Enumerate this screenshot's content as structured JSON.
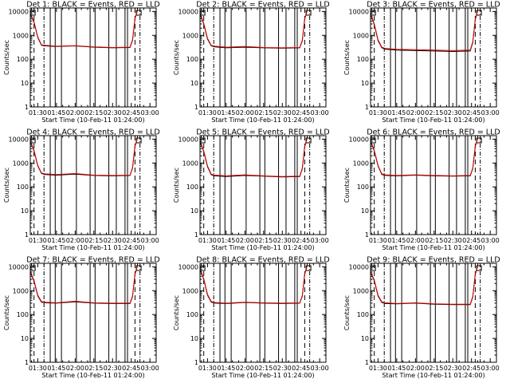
{
  "colors": {
    "background": "#ffffff",
    "axes": "#000000",
    "events": "#000000",
    "lld": "#e00000",
    "markers": "#000000"
  },
  "shared": {
    "xlabel": "Start Time (10-Feb-11 01:24:00)",
    "ylabel": "Counts/sec",
    "x_ticks": [
      "01:30",
      "01:45",
      "02:00",
      "02:15",
      "02:30",
      "02:45",
      "03:00"
    ],
    "y_ticks": [
      "1",
      "10",
      "100",
      "1000",
      "10000"
    ]
  },
  "chart_data": [
    {
      "type": "line",
      "title": "Det 1: BLACK = Events, RED = LLD",
      "xlim": [
        "01:24",
        "03:05"
      ],
      "ylim": [
        1,
        14000
      ],
      "yscale": "log",
      "series": [
        {
          "name": "Events",
          "color": "black",
          "x": [
            "01:24",
            "01:27",
            "01:30",
            "01:33",
            "01:36",
            "01:45",
            "02:00",
            "02:15",
            "02:30",
            "02:44",
            "02:46",
            "02:48",
            "02:50"
          ],
          "values": [
            8000,
            3500,
            800,
            380,
            360,
            340,
            360,
            320,
            300,
            310,
            600,
            5000,
            11000
          ]
        },
        {
          "name": "LLD",
          "color": "red",
          "x": [
            "01:24",
            "01:27",
            "01:30",
            "01:33",
            "01:36",
            "01:45",
            "02:00",
            "02:15",
            "02:30",
            "02:44",
            "02:46",
            "02:48",
            "02:50"
          ],
          "values": [
            8500,
            3700,
            850,
            400,
            380,
            350,
            370,
            330,
            310,
            320,
            650,
            5200,
            11500
          ]
        }
      ]
    },
    {
      "type": "line",
      "title": "Det 2: BLACK = Events, RED = LLD",
      "xlim": [
        "01:24",
        "03:05"
      ],
      "ylim": [
        1,
        14000
      ],
      "yscale": "log",
      "series": [
        {
          "name": "Events",
          "color": "black",
          "x": [
            "01:24",
            "01:27",
            "01:30",
            "01:33",
            "01:36",
            "01:45",
            "02:00",
            "02:15",
            "02:30",
            "02:44",
            "02:46",
            "02:48",
            "02:50"
          ],
          "values": [
            8000,
            3000,
            700,
            360,
            330,
            300,
            320,
            300,
            290,
            300,
            580,
            4800,
            11000
          ]
        },
        {
          "name": "LLD",
          "color": "red",
          "x": [
            "01:24",
            "01:27",
            "01:30",
            "01:33",
            "01:36",
            "01:45",
            "02:00",
            "02:15",
            "02:30",
            "02:44",
            "02:46",
            "02:48",
            "02:50"
          ],
          "values": [
            8500,
            3200,
            750,
            380,
            350,
            320,
            340,
            310,
            300,
            310,
            620,
            5000,
            11500
          ]
        }
      ]
    },
    {
      "type": "line",
      "title": "Det 3: BLACK = Events, RED = LLD",
      "xlim": [
        "01:24",
        "03:05"
      ],
      "ylim": [
        1,
        14000
      ],
      "yscale": "log",
      "series": [
        {
          "name": "Events",
          "color": "black",
          "x": [
            "01:24",
            "01:27",
            "01:30",
            "01:33",
            "01:36",
            "01:45",
            "02:00",
            "02:15",
            "02:30",
            "02:44",
            "02:46",
            "02:48",
            "02:50"
          ],
          "values": [
            8000,
            2800,
            600,
            300,
            260,
            240,
            230,
            220,
            210,
            220,
            500,
            4500,
            11000
          ]
        },
        {
          "name": "LLD",
          "color": "red",
          "x": [
            "01:24",
            "01:27",
            "01:30",
            "01:33",
            "01:36",
            "01:45",
            "02:00",
            "02:15",
            "02:30",
            "02:44",
            "02:46",
            "02:48",
            "02:50"
          ],
          "values": [
            8500,
            3000,
            650,
            320,
            280,
            260,
            250,
            240,
            230,
            240,
            540,
            4700,
            11500
          ]
        }
      ]
    },
    {
      "type": "line",
      "title": "Det 4: BLACK = Events, RED = LLD",
      "xlim": [
        "01:24",
        "03:05"
      ],
      "ylim": [
        1,
        14000
      ],
      "yscale": "log",
      "series": [
        {
          "name": "Events",
          "color": "black",
          "x": [
            "01:24",
            "01:27",
            "01:30",
            "01:33",
            "01:36",
            "01:45",
            "02:00",
            "02:15",
            "02:30",
            "02:44",
            "02:46",
            "02:48",
            "02:50"
          ],
          "values": [
            8000,
            3200,
            750,
            360,
            330,
            310,
            340,
            300,
            290,
            300,
            600,
            5000,
            11000
          ]
        },
        {
          "name": "LLD",
          "color": "red",
          "x": [
            "01:24",
            "01:27",
            "01:30",
            "01:33",
            "01:36",
            "01:45",
            "02:00",
            "02:15",
            "02:30",
            "02:44",
            "02:46",
            "02:48",
            "02:50"
          ],
          "values": [
            8500,
            3400,
            800,
            380,
            350,
            330,
            360,
            310,
            300,
            310,
            640,
            5200,
            11500
          ]
        }
      ]
    },
    {
      "type": "line",
      "title": "Det 5: BLACK = Events, RED = LLD",
      "xlim": [
        "01:24",
        "03:05"
      ],
      "ylim": [
        1,
        14000
      ],
      "yscale": "log",
      "series": [
        {
          "name": "Events",
          "color": "black",
          "x": [
            "01:24",
            "01:27",
            "01:30",
            "01:33",
            "01:36",
            "01:45",
            "02:00",
            "02:15",
            "02:30",
            "02:44",
            "02:46",
            "02:48",
            "02:50"
          ],
          "values": [
            8000,
            3000,
            700,
            320,
            290,
            270,
            300,
            280,
            260,
            270,
            560,
            4800,
            11000
          ]
        },
        {
          "name": "LLD",
          "color": "red",
          "x": [
            "01:24",
            "01:27",
            "01:30",
            "01:33",
            "01:36",
            "01:45",
            "02:00",
            "02:15",
            "02:30",
            "02:44",
            "02:46",
            "02:48",
            "02:50"
          ],
          "values": [
            8500,
            3200,
            750,
            340,
            310,
            290,
            320,
            290,
            270,
            280,
            600,
            5000,
            11500
          ]
        }
      ]
    },
    {
      "type": "line",
      "title": "Det 6: BLACK = Events, RED = LLD",
      "xlim": [
        "01:24",
        "03:05"
      ],
      "ylim": [
        1,
        14000
      ],
      "yscale": "log",
      "series": [
        {
          "name": "Events",
          "color": "black",
          "x": [
            "01:24",
            "01:27",
            "01:30",
            "01:33",
            "01:36",
            "01:45",
            "02:00",
            "02:15",
            "02:30",
            "02:44",
            "02:46",
            "02:48",
            "02:50"
          ],
          "values": [
            8000,
            3200,
            750,
            330,
            300,
            290,
            310,
            290,
            280,
            290,
            580,
            4900,
            11000
          ]
        },
        {
          "name": "LLD",
          "color": "red",
          "x": [
            "01:24",
            "01:27",
            "01:30",
            "01:33",
            "01:36",
            "01:45",
            "02:00",
            "02:15",
            "02:30",
            "02:44",
            "02:46",
            "02:48",
            "02:50"
          ],
          "values": [
            8500,
            3400,
            800,
            350,
            320,
            300,
            320,
            300,
            290,
            300,
            620,
            5100,
            11500
          ]
        }
      ]
    },
    {
      "type": "line",
      "title": "Det 7: BLACK = Events, RED = LLD",
      "xlim": [
        "01:24",
        "03:05"
      ],
      "ylim": [
        1,
        14000
      ],
      "yscale": "log",
      "series": [
        {
          "name": "Events",
          "color": "black",
          "x": [
            "01:24",
            "01:27",
            "01:30",
            "01:33",
            "01:36",
            "01:45",
            "02:00",
            "02:15",
            "02:30",
            "02:44",
            "02:46",
            "02:48",
            "02:50"
          ],
          "values": [
            6000,
            2500,
            600,
            330,
            310,
            300,
            340,
            300,
            290,
            290,
            560,
            4800,
            11000
          ]
        },
        {
          "name": "LLD",
          "color": "red",
          "x": [
            "01:24",
            "01:27",
            "01:30",
            "01:33",
            "01:36",
            "01:45",
            "02:00",
            "02:15",
            "02:30",
            "02:44",
            "02:46",
            "02:48",
            "02:50"
          ],
          "values": [
            6400,
            2700,
            650,
            350,
            330,
            310,
            360,
            310,
            300,
            300,
            600,
            5000,
            11500
          ]
        }
      ]
    },
    {
      "type": "line",
      "title": "Det 8: BLACK = Events, RED = LLD",
      "xlim": [
        "01:24",
        "03:05"
      ],
      "ylim": [
        1,
        14000
      ],
      "yscale": "log",
      "series": [
        {
          "name": "Events",
          "color": "black",
          "x": [
            "01:24",
            "01:27",
            "01:30",
            "01:33",
            "01:36",
            "01:45",
            "02:00",
            "02:15",
            "02:30",
            "02:44",
            "02:46",
            "02:48",
            "02:50"
          ],
          "values": [
            8000,
            3000,
            650,
            330,
            300,
            290,
            320,
            300,
            290,
            300,
            580,
            4900,
            11000
          ]
        },
        {
          "name": "LLD",
          "color": "red",
          "x": [
            "01:24",
            "01:27",
            "01:30",
            "01:33",
            "01:36",
            "01:45",
            "02:00",
            "02:15",
            "02:30",
            "02:44",
            "02:46",
            "02:48",
            "02:50"
          ],
          "values": [
            8500,
            3200,
            700,
            350,
            320,
            300,
            330,
            310,
            300,
            310,
            620,
            5100,
            11500
          ]
        }
      ]
    },
    {
      "type": "line",
      "title": "Det 9: BLACK = Events, RED = LLD",
      "xlim": [
        "01:24",
        "03:05"
      ],
      "ylim": [
        1,
        14000
      ],
      "yscale": "log",
      "series": [
        {
          "name": "Events",
          "color": "black",
          "x": [
            "01:24",
            "01:27",
            "01:30",
            "01:33",
            "01:36",
            "01:45",
            "02:00",
            "02:15",
            "02:30",
            "02:44",
            "02:46",
            "02:48",
            "02:50"
          ],
          "values": [
            6000,
            2600,
            600,
            320,
            290,
            280,
            300,
            270,
            260,
            260,
            540,
            4700,
            11000
          ]
        },
        {
          "name": "LLD",
          "color": "red",
          "x": [
            "01:24",
            "01:27",
            "01:30",
            "01:33",
            "01:36",
            "01:45",
            "02:00",
            "02:15",
            "02:30",
            "02:44",
            "02:46",
            "02:48",
            "02:50"
          ],
          "values": [
            6400,
            2800,
            650,
            340,
            310,
            290,
            310,
            280,
            270,
            270,
            580,
            4900,
            11500
          ]
        }
      ]
    }
  ]
}
